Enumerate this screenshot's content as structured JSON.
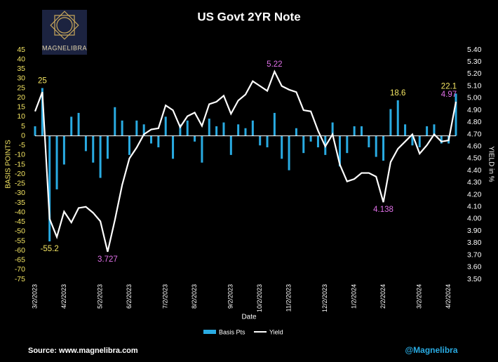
{
  "logo": "MAGNELIBRA",
  "source": "Source: www.magnelibra.com",
  "handle": "@Magnelibra",
  "chart_data": {
    "type": "bar-line",
    "title": "US Govt 2YR Note",
    "x_label": "Date",
    "y_label": "BASIS POINTS",
    "y2_label": "YIELD in %",
    "categories": [
      "3/2/2023",
      null,
      null,
      null,
      "4/2/2023",
      null,
      null,
      null,
      null,
      "5/2/2023",
      null,
      null,
      null,
      "6/2/2023",
      null,
      null,
      null,
      null,
      "7/2/2023",
      null,
      null,
      null,
      "8/2/2023",
      null,
      null,
      null,
      null,
      "9/2/2023",
      null,
      null,
      null,
      "10/2/2023",
      null,
      null,
      null,
      "11/2/2023",
      null,
      null,
      null,
      null,
      "12/2/2023",
      null,
      null,
      null,
      "1/2/2024",
      null,
      null,
      null,
      "2/2/2024",
      null,
      null,
      null,
      null,
      "3/2/2024",
      null,
      null,
      null,
      "4/2/2024",
      null
    ],
    "series": [
      {
        "name": "Basis Pts",
        "type": "bar",
        "color": "#29abe2",
        "label_color": "#f5e663",
        "values": [
          5,
          25,
          -55.2,
          -28,
          -15,
          10,
          12,
          -8,
          -14,
          -22,
          -12,
          15,
          8,
          -10,
          8,
          6,
          -4,
          -6,
          10,
          -12,
          6,
          8,
          -3,
          -14,
          9,
          5,
          7,
          -10,
          6,
          4,
          8,
          -5,
          -6,
          12,
          -12,
          -18,
          4,
          -9,
          -3,
          -6,
          -10,
          7,
          -16,
          -9,
          5,
          5,
          -6,
          -11,
          -13,
          14,
          18.6,
          6,
          -5,
          -6,
          5,
          6,
          -4,
          -4,
          22.1
        ],
        "value_labels": [
          null,
          "25",
          "-55.2",
          null,
          null,
          null,
          null,
          null,
          null,
          null,
          null,
          null,
          null,
          null,
          null,
          null,
          null,
          null,
          null,
          null,
          null,
          null,
          null,
          null,
          null,
          null,
          null,
          null,
          null,
          null,
          null,
          null,
          null,
          null,
          null,
          null,
          null,
          null,
          null,
          null,
          null,
          null,
          null,
          null,
          null,
          null,
          null,
          null,
          null,
          null,
          "18.6",
          null,
          null,
          null,
          null,
          null,
          null,
          null,
          "22.1"
        ]
      },
      {
        "name": "Yield",
        "type": "line",
        "axis": "y2",
        "color": "#ffffff",
        "label_color": "#e070e8",
        "values": [
          4.89,
          5.05,
          4.0,
          3.85,
          4.06,
          3.97,
          4.09,
          4.1,
          4.05,
          3.98,
          3.727,
          3.99,
          4.28,
          4.5,
          4.59,
          4.7,
          4.74,
          4.75,
          4.94,
          4.9,
          4.76,
          4.85,
          4.88,
          4.77,
          4.95,
          4.97,
          5.02,
          4.87,
          4.98,
          5.03,
          5.14,
          5.1,
          5.06,
          5.22,
          5.1,
          5.07,
          5.05,
          4.9,
          4.89,
          4.73,
          4.6,
          4.7,
          4.45,
          4.31,
          4.33,
          4.38,
          4.38,
          4.35,
          4.138,
          4.47,
          4.58,
          4.64,
          4.7,
          4.54,
          4.61,
          4.7,
          4.64,
          4.65,
          4.97
        ],
        "value_labels": [
          null,
          null,
          null,
          null,
          null,
          null,
          null,
          null,
          null,
          null,
          "3.727",
          null,
          null,
          null,
          null,
          null,
          null,
          null,
          null,
          null,
          null,
          null,
          null,
          null,
          null,
          null,
          null,
          null,
          null,
          null,
          null,
          null,
          null,
          "5.22",
          null,
          null,
          null,
          null,
          null,
          null,
          null,
          null,
          null,
          null,
          null,
          null,
          null,
          null,
          "4.138",
          null,
          null,
          null,
          null,
          null,
          null,
          null,
          null,
          null,
          "4.97"
        ]
      }
    ],
    "ylim": [
      -75,
      45
    ],
    "yticks": [
      -75,
      -70,
      -65,
      -60,
      -55,
      -50,
      -45,
      -40,
      -35,
      -30,
      -25,
      -20,
      -15,
      -10,
      -5,
      0,
      5,
      10,
      15,
      20,
      25,
      30,
      35,
      40,
      45
    ],
    "y2lim": [
      3.5,
      5.4
    ],
    "y2ticks": [
      {
        "value": 3.5,
        "label": "3.50"
      },
      {
        "value": 3.6,
        "label": "3.60"
      },
      {
        "value": 3.7,
        "label": "3.70"
      },
      {
        "value": 3.8,
        "label": "3.80"
      },
      {
        "value": 3.9,
        "label": "3.90"
      },
      {
        "value": 4,
        "label": "4.00"
      },
      {
        "value": 4.1,
        "label": "4.10"
      },
      {
        "value": 4.2,
        "label": "4.20"
      },
      {
        "value": 4.3,
        "label": "4.30"
      },
      {
        "value": 4.4,
        "label": "4.40"
      },
      {
        "value": 4.5,
        "label": "4.50"
      },
      {
        "value": 4.6,
        "label": "4.60"
      },
      {
        "value": 4.7,
        "label": "4.70"
      },
      {
        "value": 4.8,
        "label": "4.80"
      },
      {
        "value": 4.9,
        "label": "4.90"
      },
      {
        "value": 5,
        "label": "5.00"
      },
      {
        "value": 5.1,
        "label": "5.10"
      },
      {
        "value": 5.2,
        "label": "5.20"
      },
      {
        "value": 5.3,
        "label": "5.30"
      },
      {
        "value": 5.4,
        "label": "5.40"
      }
    ],
    "y_tick_color": "#f5e663",
    "legend": "bottom"
  }
}
